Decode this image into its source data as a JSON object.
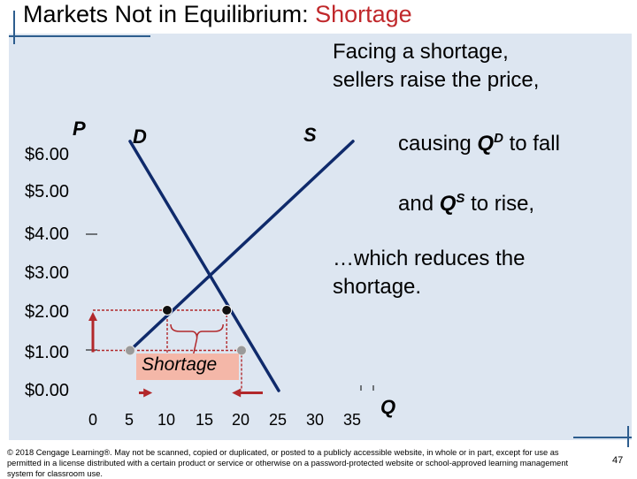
{
  "slide": {
    "title_main": "Markets Not in Equilibrium: ",
    "title_highlight": "Shortage",
    "notes": {
      "line1": "Facing a shortage,",
      "line2": "sellers raise the price,",
      "causing_prefix": "causing ",
      "causing_q": "Q",
      "causing_sup": "D",
      "causing_suffix": " to fall",
      "and_prefix": "and ",
      "and_q": "Q",
      "and_sup": "S",
      "and_suffix": " to rise,",
      "reduces1": "…which reduces the",
      "reduces2": "shortage."
    },
    "shortage_label": "Shortage",
    "footer": "© 2018 Cengage Learning®. May not be scanned, copied or duplicated, or posted to a publicly accessible website, in whole or in part, except for use as permitted in a license distributed with a certain product or service or otherwise on a password-protected website or school-approved learning management system for classroom use.",
    "page_number": "47",
    "colors": {
      "curve": "#0f2a6b",
      "accent": "#b2282b",
      "panel": "#dde6f1",
      "shortage_fill": "#f4b7a8"
    }
  },
  "chart_data": {
    "type": "line",
    "ylabel": "P",
    "xlabel": "Q",
    "y_ticks": [
      "$6.00",
      "$5.00",
      "$4.00",
      "$3.00",
      "$2.00",
      "$1.00",
      "$0.00"
    ],
    "x_ticks": [
      "0",
      "5",
      "10",
      "15",
      "20",
      "25",
      "30",
      "35"
    ],
    "ylim": [
      0,
      6
    ],
    "xlim": [
      0,
      35
    ],
    "series": [
      {
        "name": "D",
        "points": [
          [
            5,
            6.2
          ],
          [
            25,
            0
          ]
        ]
      },
      {
        "name": "S",
        "points": [
          [
            5,
            1
          ],
          [
            35,
            6.2
          ]
        ]
      }
    ],
    "initial_price": 1,
    "new_price": 2,
    "initial_quantities": {
      "supplied": 5,
      "demanded": 20
    },
    "new_quantities": {
      "supplied": 10,
      "demanded": 18
    }
  }
}
